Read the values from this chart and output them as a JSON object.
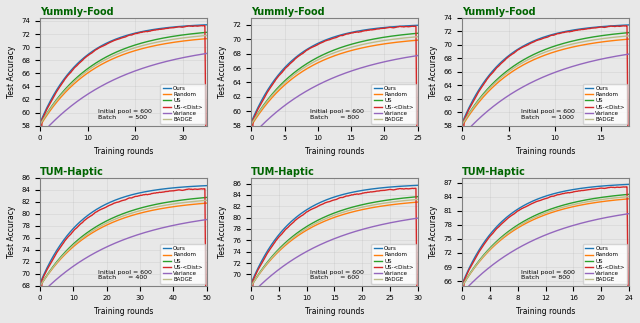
{
  "subplots": [
    {
      "title": "Yummly-Food",
      "dataset": "yummly",
      "xlabel": "Training rounds",
      "ylabel": "Test Accuracy",
      "ylim": [
        58,
        74.5
      ],
      "xlim": [
        0,
        35
      ],
      "xticks": [
        0,
        10,
        20,
        30
      ],
      "yticks": [
        58,
        60,
        62,
        64,
        66,
        68,
        70,
        72,
        74
      ],
      "annotation": "Initial pool = 600\nBatch      = 500",
      "batch": 500,
      "rounds": 35,
      "init_pool": 600
    },
    {
      "title": "Yummly-Food",
      "dataset": "yummly",
      "xlabel": "Training rounds",
      "ylabel": "Test Accuracy",
      "ylim": [
        58,
        73
      ],
      "xlim": [
        0,
        25
      ],
      "xticks": [
        0,
        5,
        10,
        15,
        20,
        25
      ],
      "yticks": [
        58,
        60,
        62,
        64,
        66,
        68,
        70,
        72
      ],
      "annotation": "Initial pool = 600\nBatch      = 800",
      "batch": 800,
      "rounds": 25,
      "init_pool": 600
    },
    {
      "title": "Yummly-Food",
      "dataset": "yummly",
      "xlabel": "Training rounds",
      "ylabel": "Test Accuracy",
      "ylim": [
        58,
        74
      ],
      "xlim": [
        0,
        18
      ],
      "xticks": [
        0,
        5,
        10,
        15
      ],
      "yticks": [
        58,
        60,
        62,
        64,
        66,
        68,
        70,
        72,
        74
      ],
      "annotation": "Initial pool = 600\nBatch      = 1000",
      "batch": 1000,
      "rounds": 18,
      "init_pool": 600
    },
    {
      "title": "TUM-Haptic",
      "dataset": "haptic",
      "xlabel": "Training rounds",
      "ylabel": "Test Accuracy",
      "ylim": [
        68,
        86
      ],
      "xlim": [
        0,
        50
      ],
      "xticks": [
        0,
        10,
        20,
        30,
        40,
        50
      ],
      "yticks": [
        68,
        70,
        72,
        74,
        76,
        78,
        80,
        82,
        84,
        86
      ],
      "annotation": "Initial pool = 600\nBatch      = 400",
      "batch": 400,
      "rounds": 50,
      "init_pool": 600
    },
    {
      "title": "TUM-Haptic",
      "dataset": "haptic",
      "xlabel": "Training rounds",
      "ylabel": "Test Accuracy",
      "ylim": [
        68,
        87
      ],
      "xlim": [
        0,
        30
      ],
      "xticks": [
        0,
        5,
        10,
        15,
        20,
        25,
        30
      ],
      "yticks": [
        70,
        72,
        74,
        76,
        78,
        80,
        82,
        84,
        86
      ],
      "annotation": "Initial pool = 600\nBatch      = 600",
      "batch": 600,
      "rounds": 30,
      "init_pool": 600
    },
    {
      "title": "TUM-Haptic",
      "dataset": "haptic",
      "xlabel": "Training rounds",
      "ylabel": "Test Accuracy",
      "ylim": [
        65,
        88
      ],
      "xlim": [
        0,
        24
      ],
      "xticks": [
        0,
        4,
        8,
        12,
        16,
        20,
        24
      ],
      "yticks": [
        66,
        69,
        72,
        75,
        78,
        81,
        84,
        87
      ],
      "annotation": "Initial pool = 600\nBatch      = 800",
      "batch": 800,
      "rounds": 24,
      "init_pool": 600
    }
  ],
  "methods": [
    "Ours",
    "Random",
    "US",
    "US-<Dist>",
    "Variance",
    "BADGE"
  ],
  "colors": {
    "Ours": "#1f77b4",
    "Random": "#ff7f0e",
    "US": "#2ca02c",
    "US-<Dist>": "#d62728",
    "Variance": "#9467bd",
    "BADGE": "#bcbd8b"
  },
  "title_color": "#006400",
  "bg_color": "#e8e8e8"
}
